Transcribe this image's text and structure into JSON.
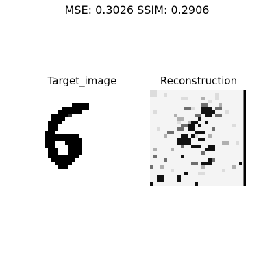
{
  "figure": {
    "suptitle": "MSE: 0.3026  SSIM: 0.2906",
    "panels": [
      {
        "title": "Target_image"
      },
      {
        "title": "Reconstruction"
      }
    ]
  },
  "colors": {
    "background": "#ffffff",
    "ink": "#000000"
  }
}
